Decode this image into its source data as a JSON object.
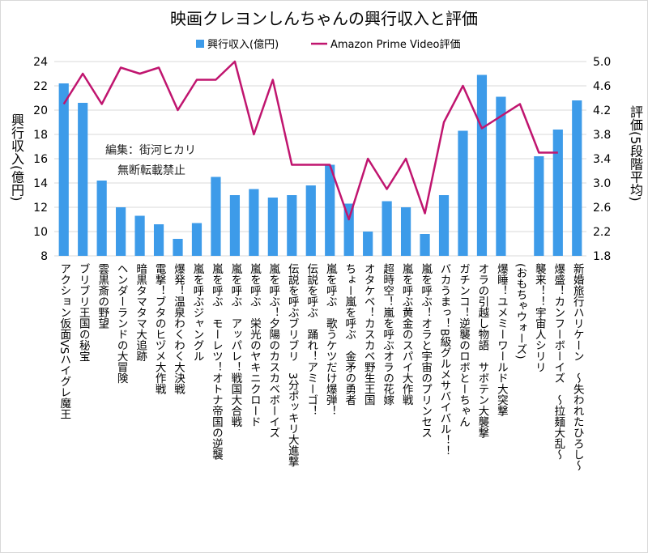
{
  "chart_data": {
    "type": "bar+line",
    "title": "映画クレヨンしんちゃんの興行収入と評価",
    "legend": {
      "placement": "top",
      "bar_label": "興行収入(億円)",
      "line_label": "Amazon Prime Video評価"
    },
    "left_axis": {
      "label": "興行収入(億円)",
      "ylim": [
        8,
        24
      ],
      "ticks": [
        "8",
        "10",
        "12",
        "14",
        "16",
        "18",
        "20",
        "22",
        "24"
      ]
    },
    "right_axis": {
      "label": "評価(5段階平均)",
      "ylim": [
        1.8,
        5.0
      ],
      "ticks": [
        "1.8",
        "2.2",
        "2.6",
        "3.0",
        "3.4",
        "3.8",
        "4.2",
        "4.6",
        "5.0"
      ]
    },
    "colors": {
      "bar": "#3d9be9",
      "line": "#c0156f",
      "grid": "#d9d9d9"
    },
    "annotation": [
      "編集：街河ヒカリ",
      "無断転載禁止"
    ],
    "categories": [
      "アクション仮面VSハイグレ魔王",
      "ブリブリ王国の秘宝",
      "雲黒斎の野望",
      "ヘンダーランドの大冒険",
      "暗黒タマタマ大追跡",
      "電撃！ブタのヒヅメ大作戦",
      "爆発！温泉わくわく大決戦",
      "嵐を呼ぶジャングル",
      "嵐を呼ぶ　モーレツ！オトナ帝国の逆襲",
      "嵐を呼ぶ　アッパレ！戦国大合戦",
      "嵐を呼ぶ　栄光のヤキニクロード",
      "嵐を呼ぶ！夕陽のカスカベボーイズ",
      "伝説を呼ぶブリブリ　3分ポッキリ大進撃",
      "伝説を呼ぶ　踊れ！アミーゴ！",
      "嵐を呼ぶ　歌うケツだけ爆弾！",
      "ちょー嵐を呼ぶ　金矛の勇者",
      "オタケベ！カスカベ野生王国",
      "超時空！嵐を呼ぶオラの花嫁",
      "嵐を呼ぶ黄金のスパイ大作戦",
      "嵐を呼ぶ！オラと宇宙のプリンセス",
      "バカうまっ！B級グルメサバイバル！！",
      "ガチンコ！逆襲のロボとーちゃん",
      "オラの引越し物語　サボテン大襲撃",
      "爆睡！ユメミーワールド大突撃",
      "(おもちゃウォーズ)",
      "襲来！！宇宙人シリリ",
      "爆盛！カンフーボーイズ　～拉麺大乱～",
      "新婚旅行ハリケーン　～失われたひろし～"
    ],
    "series": [
      {
        "name": "興行収入(億円)",
        "axis": "left",
        "type": "bar",
        "values": [
          22.2,
          20.6,
          14.2,
          12.0,
          11.3,
          10.6,
          9.4,
          10.7,
          14.5,
          13.0,
          13.5,
          12.8,
          13.0,
          13.8,
          15.5,
          12.3,
          10.0,
          12.5,
          12.0,
          9.8,
          13.0,
          18.3,
          22.9,
          21.1,
          null,
          16.2,
          18.4,
          20.8
        ]
      },
      {
        "name": "Amazon Prime Video評価",
        "axis": "right",
        "type": "line",
        "values": [
          4.3,
          4.8,
          4.3,
          4.9,
          4.8,
          4.9,
          4.2,
          4.7,
          4.7,
          5.0,
          3.8,
          4.7,
          3.3,
          3.3,
          3.3,
          2.4,
          3.4,
          2.9,
          3.4,
          2.5,
          4.0,
          4.6,
          3.9,
          4.1,
          4.3,
          3.5,
          3.5,
          null
        ]
      }
    ]
  }
}
